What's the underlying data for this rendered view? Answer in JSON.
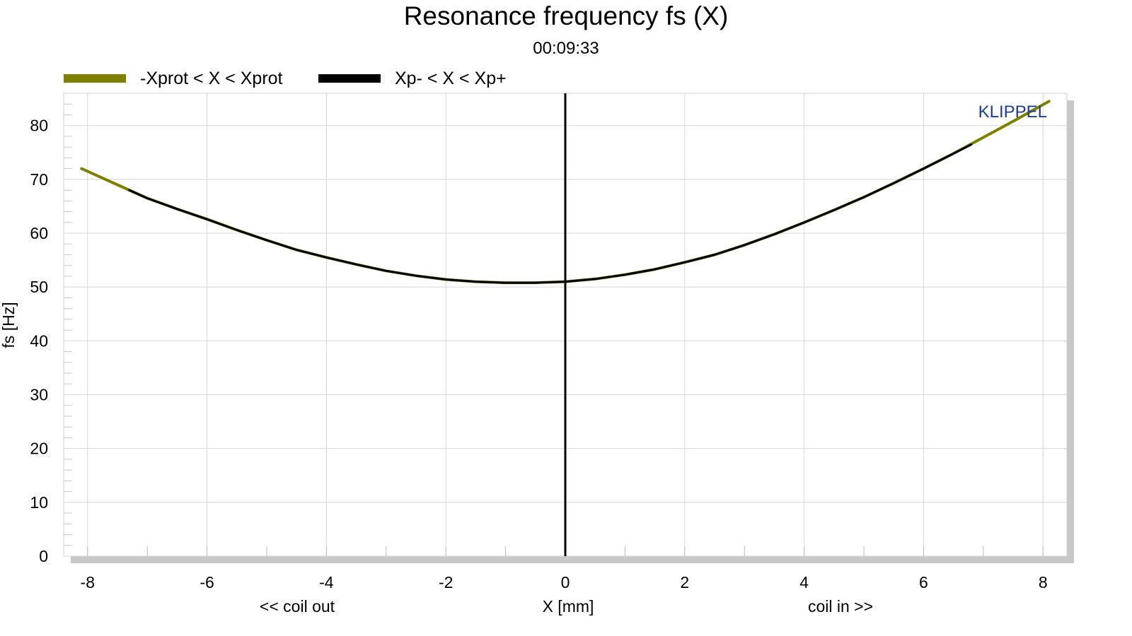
{
  "chart_data": {
    "type": "line",
    "title": "Resonance frequency fs (X)",
    "subtitle": "00:09:33",
    "xlabel": "X [mm]",
    "ylabel": "fs [Hz]",
    "x_left_note": "<< coil out",
    "x_right_note": "coil in >>",
    "brand": "KLIPPEL",
    "xlim": [
      -8.4,
      8.4
    ],
    "ylim": [
      0,
      86
    ],
    "xticks": [
      -8,
      -6,
      -4,
      -2,
      0,
      2,
      4,
      6,
      8
    ],
    "yticks": [
      0,
      10,
      20,
      30,
      40,
      50,
      60,
      70,
      80
    ],
    "grid": true,
    "legend": [
      {
        "label": "-Xprot < X < Xprot",
        "color": "#808000"
      },
      {
        "label": "Xp- < X < Xp+",
        "color": "#000000"
      }
    ],
    "series": [
      {
        "name": "-Xprot < X < Xprot",
        "color": "#808000",
        "x": [
          -8.1,
          -7.5,
          -7.0,
          -6.5,
          -6.0,
          -5.5,
          -5.0,
          -4.5,
          -4.0,
          -3.5,
          -3.0,
          -2.5,
          -2.0,
          -1.5,
          -1.0,
          -0.5,
          0.0,
          0.5,
          1.0,
          1.5,
          2.0,
          2.5,
          3.0,
          3.5,
          4.0,
          4.5,
          5.0,
          5.5,
          6.0,
          6.5,
          7.0,
          7.5,
          8.1
        ],
        "y": [
          72.0,
          69.0,
          66.5,
          64.5,
          62.6,
          60.6,
          58.7,
          56.9,
          55.5,
          54.2,
          53.0,
          52.1,
          51.4,
          51.0,
          50.8,
          50.8,
          51.0,
          51.5,
          52.3,
          53.3,
          54.6,
          56.0,
          57.8,
          59.8,
          62.0,
          64.3,
          66.7,
          69.3,
          72.0,
          74.8,
          77.8,
          80.8,
          84.5
        ]
      },
      {
        "name": "Xp- < X < Xp+",
        "color": "#000000",
        "x": [
          -7.3,
          -7.0,
          -6.5,
          -6.0,
          -5.5,
          -5.0,
          -4.5,
          -4.0,
          -3.5,
          -3.0,
          -2.5,
          -2.0,
          -1.5,
          -1.0,
          -0.5,
          0.0,
          0.5,
          1.0,
          1.5,
          2.0,
          2.5,
          3.0,
          3.5,
          4.0,
          4.5,
          5.0,
          5.5,
          6.0,
          6.5,
          6.8
        ],
        "y": [
          68.0,
          66.5,
          64.5,
          62.6,
          60.6,
          58.7,
          56.9,
          55.5,
          54.2,
          53.0,
          52.1,
          51.4,
          51.0,
          50.8,
          50.8,
          51.0,
          51.5,
          52.3,
          53.3,
          54.6,
          56.0,
          57.8,
          59.8,
          62.0,
          64.3,
          66.7,
          69.3,
          72.0,
          74.8,
          76.5
        ]
      }
    ],
    "annotations": [
      {
        "type": "vline",
        "x": 0,
        "color": "#000000"
      }
    ]
  }
}
